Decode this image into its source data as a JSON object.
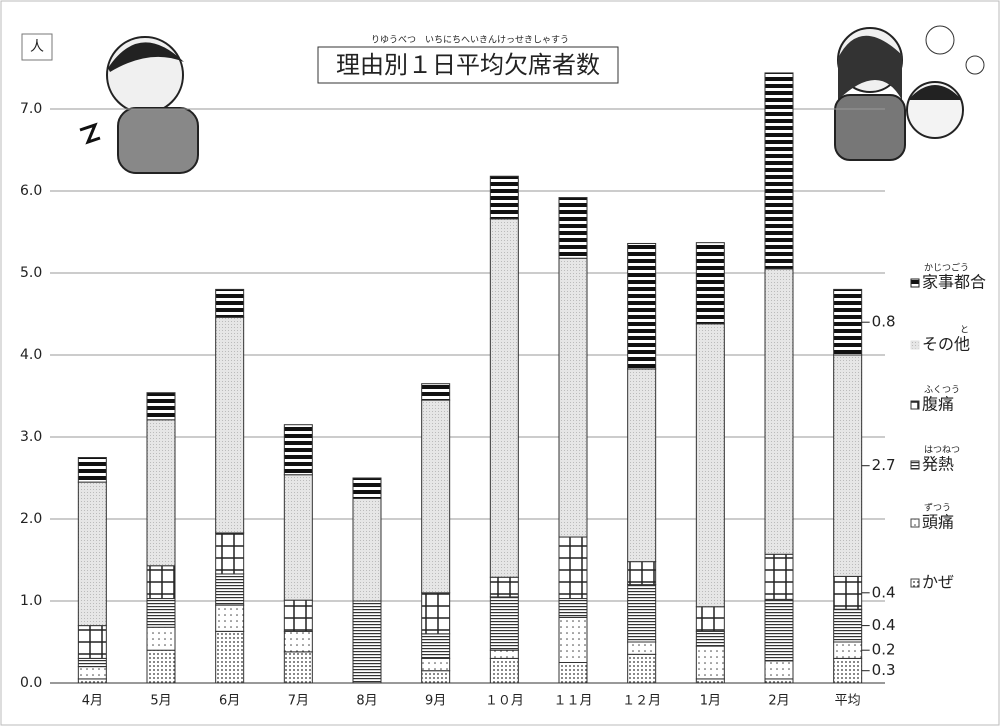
{
  "chart_data": {
    "type": "stacked-bar",
    "title": "理由別１日平均欠席者数",
    "title_reading": "りゆうべつ　いちにちへいきんけっせきしゃすう",
    "y_label": "人",
    "categories": [
      "4月",
      "5月",
      "6月",
      "7月",
      "8月",
      "9月",
      "１０月",
      "１１月",
      "１２月",
      "1月",
      "2月",
      "平均"
    ],
    "series": [
      {
        "name": "かぜ",
        "pattern": "dots",
        "color": "#444",
        "values": [
          0.05,
          0.4,
          0.63,
          0.38,
          0,
          0.15,
          0.3,
          0.25,
          0.35,
          0.05,
          0.05,
          0.3
        ]
      },
      {
        "name": "頭痛",
        "reading": "ずつう",
        "pattern": "sparse-dots",
        "color": "#444",
        "values": [
          0.15,
          0.28,
          0.32,
          0.25,
          0,
          0.15,
          0.1,
          0.55,
          0.15,
          0.4,
          0.22,
          0.2
        ]
      },
      {
        "name": "発熱",
        "reading": "はつねつ",
        "pattern": "lines",
        "color": "#333",
        "values": [
          0.1,
          0.35,
          0.38,
          0,
          1.0,
          0.3,
          0.65,
          0.23,
          0.7,
          0.18,
          0.75,
          0.4
        ]
      },
      {
        "name": "腹痛",
        "reading": "ふくつう",
        "pattern": "grid",
        "color": "#333",
        "values": [
          0.4,
          0.4,
          0.5,
          0.38,
          0,
          0.5,
          0.24,
          0.75,
          0.28,
          0.3,
          0.55,
          0.4
        ]
      },
      {
        "name": "その他",
        "reading": "と",
        "pattern": "gray",
        "color": "#e2e2e2",
        "values": [
          1.75,
          1.78,
          2.63,
          1.53,
          1.25,
          2.35,
          4.37,
          3.4,
          2.35,
          3.45,
          3.48,
          2.7
        ]
      },
      {
        "name": "家事都合",
        "reading": "かじつごう",
        "pattern": "stripes",
        "color": "#222",
        "values": [
          0.3,
          0.33,
          0.34,
          0.61,
          0.25,
          0.2,
          0.52,
          0.74,
          1.53,
          0.99,
          2.39,
          0.8
        ]
      }
    ],
    "ylim": [
      0,
      7.5
    ],
    "yticks": [
      {
        "value": 0,
        "label": "0.0"
      },
      {
        "value": 1,
        "label": "1.0"
      },
      {
        "value": 2,
        "label": "2.0"
      },
      {
        "value": 3,
        "label": "3.0"
      },
      {
        "value": 4,
        "label": "4.0"
      },
      {
        "value": 5,
        "label": "5.0"
      },
      {
        "value": 6,
        "label": "6.0"
      },
      {
        "value": 7,
        "label": "7.0"
      }
    ],
    "grid": true
  }
}
